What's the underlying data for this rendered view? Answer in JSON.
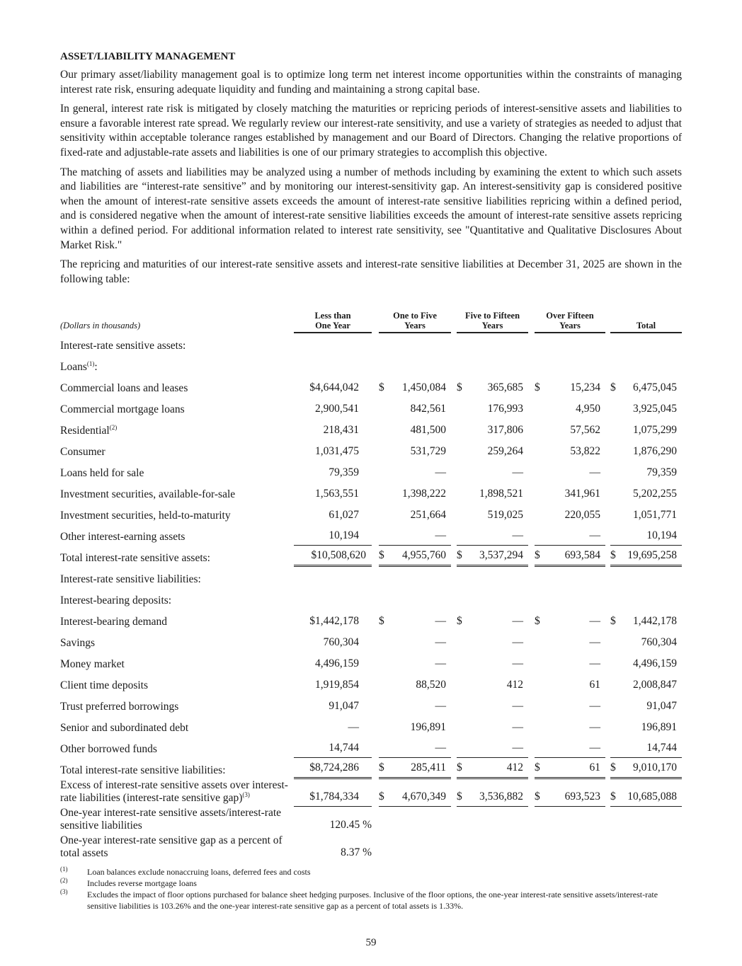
{
  "title": "ASSET/LIABILITY MANAGEMENT",
  "paragraphs": [
    "Our primary asset/liability management goal is to optimize long term net interest income opportunities within the constraints of managing interest rate risk, ensuring adequate liquidity and funding and maintaining a strong capital base.",
    "In general, interest rate risk is mitigated by closely matching the maturities or repricing periods of interest-sensitive assets and liabilities to ensure a favorable interest rate spread. We regularly review our interest-rate sensitivity, and use a variety of strategies as needed to adjust that sensitivity within acceptable tolerance ranges established by management and our Board of Directors. Changing the relative proportions of fixed-rate and adjustable-rate assets and liabilities is one of our primary strategies to accomplish this objective.",
    "The matching of assets and liabilities may be analyzed using a number of methods including by examining the extent to which such assets and liabilities are “interest-rate sensitive” and by monitoring our interest-sensitivity gap. An interest-sensitivity gap is considered positive when the amount of interest-rate sensitive assets exceeds the amount of interest-rate sensitive liabilities repricing within a defined period, and is considered negative when the amount of interest-rate sensitive liabilities exceeds the amount of interest-rate sensitive assets repricing within a defined period. For additional information related to interest rate sensitivity, see \"Quantitative and Qualitative Disclosures About Market Risk.\"",
    "The repricing and maturities of our interest-rate sensitive assets and interest-rate sensitive liabilities at December 31, 2025 are shown in the following table:"
  ],
  "table": {
    "units": "(Dollars in thousands)",
    "headers": [
      [
        "Less than",
        "One Year"
      ],
      [
        "One to Five",
        "Years"
      ],
      [
        "Five to Fifteen",
        "Years"
      ],
      [
        "Over Fifteen",
        "Years"
      ],
      [
        "",
        "Total"
      ]
    ],
    "rows": [
      {
        "label": "Interest-rate sensitive assets:",
        "indent": 0,
        "values": []
      },
      {
        "label": "Loans",
        "sup": "(1)",
        "suffix": ":",
        "indent": 0,
        "values": []
      },
      {
        "label": "Commercial loans and leases",
        "indent": 1,
        "values": [
          [
            "",
            "$4,644,042"
          ],
          [
            "$",
            "1,450,084"
          ],
          [
            "$",
            "365,685"
          ],
          [
            "$",
            "15,234"
          ],
          [
            "$",
            "6,475,045"
          ]
        ]
      },
      {
        "label": "Commercial mortgage loans",
        "indent": 1,
        "values": [
          [
            "",
            "2,900,541"
          ],
          [
            "",
            "842,561"
          ],
          [
            "",
            "176,993"
          ],
          [
            "",
            "4,950"
          ],
          [
            "",
            "3,925,045"
          ]
        ]
      },
      {
        "label": "Residential",
        "sup": "(2)",
        "indent": 1,
        "values": [
          [
            "",
            "218,431"
          ],
          [
            "",
            "481,500"
          ],
          [
            "",
            "317,806"
          ],
          [
            "",
            "57,562"
          ],
          [
            "",
            "1,075,299"
          ]
        ]
      },
      {
        "label": "Consumer",
        "indent": 1,
        "values": [
          [
            "",
            "1,031,475"
          ],
          [
            "",
            "531,729"
          ],
          [
            "",
            "259,264"
          ],
          [
            "",
            "53,822"
          ],
          [
            "",
            "1,876,290"
          ]
        ]
      },
      {
        "label": "Loans held for sale",
        "indent": 1,
        "values": [
          [
            "",
            "79,359"
          ],
          [
            "",
            "—"
          ],
          [
            "",
            "—"
          ],
          [
            "",
            "—"
          ],
          [
            "",
            "79,359"
          ]
        ]
      },
      {
        "label": "Investment securities, available-for-sale",
        "indent": 0,
        "values": [
          [
            "",
            "1,563,551"
          ],
          [
            "",
            "1,398,222"
          ],
          [
            "",
            "1,898,521"
          ],
          [
            "",
            "341,961"
          ],
          [
            "",
            "5,202,255"
          ]
        ]
      },
      {
        "label": "Investment securities, held-to-maturity",
        "indent": 0,
        "values": [
          [
            "",
            "61,027"
          ],
          [
            "",
            "251,664"
          ],
          [
            "",
            "519,025"
          ],
          [
            "",
            "220,055"
          ],
          [
            "",
            "1,051,771"
          ]
        ]
      },
      {
        "label": "Other interest-earning assets",
        "indent": 0,
        "border": "b1",
        "values": [
          [
            "",
            "10,194"
          ],
          [
            "",
            "—"
          ],
          [
            "",
            "—"
          ],
          [
            "",
            "—"
          ],
          [
            "",
            "10,194"
          ]
        ]
      },
      {
        "label": "Total interest-rate sensitive assets:",
        "indent": 2,
        "border": "b2",
        "total": true,
        "values": [
          [
            "",
            "$10,508,620"
          ],
          [
            "$",
            "4,955,760"
          ],
          [
            "$",
            "3,537,294"
          ],
          [
            "$",
            "693,584"
          ],
          [
            "$",
            "19,695,258"
          ]
        ]
      },
      {
        "label": "Interest-rate sensitive liabilities:",
        "indent": 0,
        "values": []
      },
      {
        "label": "Interest-bearing deposits:",
        "indent": 0,
        "values": []
      },
      {
        "label": "Interest-bearing demand",
        "indent": 1,
        "values": [
          [
            "",
            "$1,442,178"
          ],
          [
            "$",
            "—"
          ],
          [
            "$",
            "—"
          ],
          [
            "$",
            "—"
          ],
          [
            "$",
            "1,442,178"
          ]
        ]
      },
      {
        "label": "Savings",
        "indent": 1,
        "values": [
          [
            "",
            "760,304"
          ],
          [
            "",
            "—"
          ],
          [
            "",
            "—"
          ],
          [
            "",
            "—"
          ],
          [
            "",
            "760,304"
          ]
        ]
      },
      {
        "label": "Money market",
        "indent": 1,
        "values": [
          [
            "",
            "4,496,159"
          ],
          [
            "",
            "—"
          ],
          [
            "",
            "—"
          ],
          [
            "",
            "—"
          ],
          [
            "",
            "4,496,159"
          ]
        ]
      },
      {
        "label": "Client time deposits",
        "indent": 1,
        "values": [
          [
            "",
            "1,919,854"
          ],
          [
            "",
            "88,520"
          ],
          [
            "",
            "412"
          ],
          [
            "",
            "61"
          ],
          [
            "",
            "2,008,847"
          ]
        ]
      },
      {
        "label": "Trust preferred borrowings",
        "indent": 0,
        "values": [
          [
            "",
            "91,047"
          ],
          [
            "",
            "—"
          ],
          [
            "",
            "—"
          ],
          [
            "",
            "—"
          ],
          [
            "",
            "91,047"
          ]
        ]
      },
      {
        "label": "Senior and subordinated debt",
        "indent": 0,
        "values": [
          [
            "",
            "—"
          ],
          [
            "",
            "196,891"
          ],
          [
            "",
            "—"
          ],
          [
            "",
            "—"
          ],
          [
            "",
            "196,891"
          ]
        ]
      },
      {
        "label": "Other borrowed funds",
        "indent": 0,
        "border": "b1",
        "values": [
          [
            "",
            "14,744"
          ],
          [
            "",
            "—"
          ],
          [
            "",
            "—"
          ],
          [
            "",
            "—"
          ],
          [
            "",
            "14,744"
          ]
        ]
      },
      {
        "label": "Total interest-rate sensitive liabilities:",
        "indent": 0,
        "border": "b2",
        "values": [
          [
            "",
            "$8,724,286"
          ],
          [
            "$",
            "285,411"
          ],
          [
            "$",
            "412"
          ],
          [
            "$",
            "61"
          ],
          [
            "$",
            "9,010,170"
          ]
        ]
      },
      {
        "label": "Excess of interest-rate sensitive assets over interest-rate liabilities (interest-rate sensitive gap)",
        "sup": "(3)",
        "indent": 0,
        "border": "bs",
        "values": [
          [
            "",
            "$1,784,334"
          ],
          [
            "$",
            "4,670,349"
          ],
          [
            "$",
            "3,536,882"
          ],
          [
            "$",
            "693,523"
          ],
          [
            "$",
            "10,685,088"
          ]
        ]
      },
      {
        "label": "One-year interest-rate sensitive assets/interest-rate sensitive liabilities",
        "indent": 0,
        "pct": true,
        "values": [
          [
            "",
            "120.45 %"
          ]
        ]
      },
      {
        "label": "One-year interest-rate sensitive gap as a percent of total assets",
        "indent": 0,
        "pct": true,
        "values": [
          [
            "",
            "8.37 %"
          ]
        ]
      }
    ]
  },
  "footnotes": [
    {
      "mark": "(1)",
      "text": "Loan balances exclude nonaccruing loans, deferred fees and costs"
    },
    {
      "mark": "(2)",
      "text": "Includes reverse mortgage loans"
    },
    {
      "mark": "(3)",
      "text": "Excludes the impact of floor options purchased for balance sheet hedging purposes. Inclusive of the floor options, the one-year interest-rate sensitive assets/interest-rate sensitive liabilities is 103.26% and the one-year interest-rate sensitive gap as a percent of total assets is 1.33%."
    }
  ],
  "page_number": "59"
}
